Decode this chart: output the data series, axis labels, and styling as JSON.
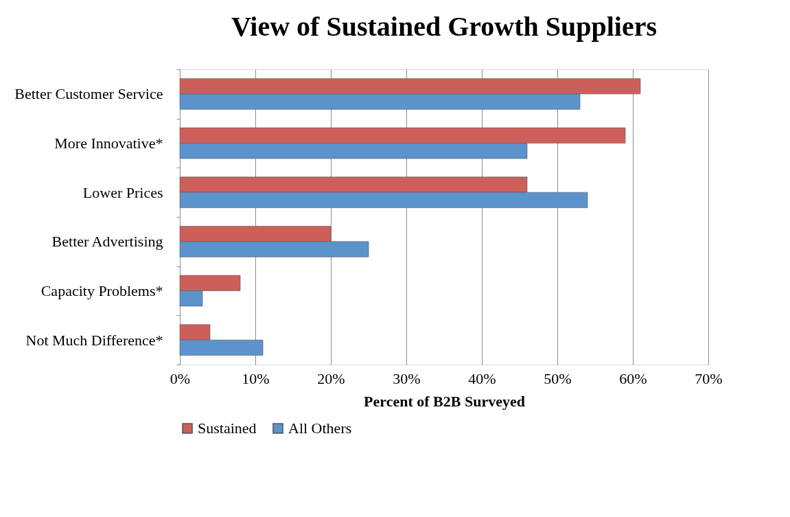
{
  "chart_data": {
    "type": "bar",
    "orientation": "horizontal",
    "title": "View of Sustained Growth Suppliers",
    "xlabel": "Percent of B2B Surveyed",
    "categories": [
      "Better Customer Service",
      "More Innovative*",
      "Lower Prices",
      "Better Advertising",
      "Capacity Problems*",
      "Not Much Difference*"
    ],
    "series": [
      {
        "name": "Sustained",
        "color": "#cd5f5b",
        "values": [
          61,
          59,
          46,
          20,
          8,
          4
        ]
      },
      {
        "name": "All Others",
        "color": "#5c93cc",
        "values": [
          53,
          46,
          54,
          25,
          3,
          11
        ]
      }
    ],
    "xlim": [
      0,
      70
    ],
    "xticks": [
      {
        "value": 0,
        "label": "0%"
      },
      {
        "value": 10,
        "label": "10%"
      },
      {
        "value": 20,
        "label": "20%"
      },
      {
        "value": 30,
        "label": "30%"
      },
      {
        "value": 40,
        "label": "40%"
      },
      {
        "value": 50,
        "label": "50%"
      },
      {
        "value": 60,
        "label": "60%"
      },
      {
        "value": 70,
        "label": "70%"
      }
    ],
    "grid": "x",
    "legend": "bottom"
  }
}
